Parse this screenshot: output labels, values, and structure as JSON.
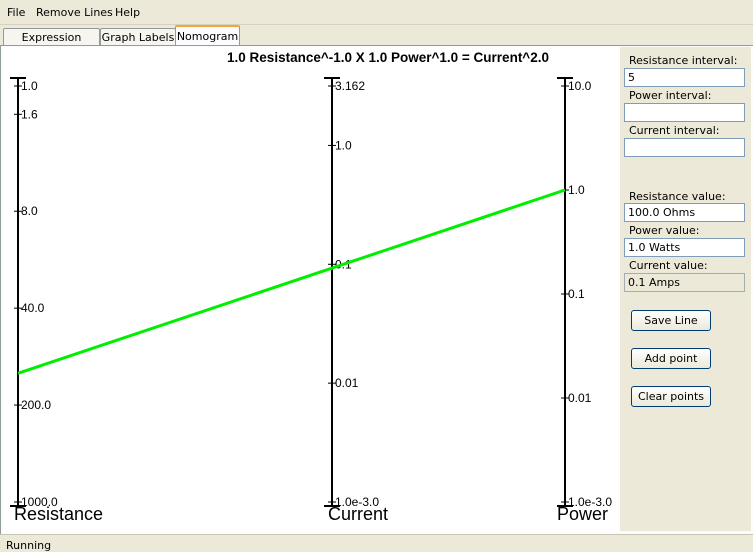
{
  "menu": [
    "File",
    "Remove Lines",
    "Help"
  ],
  "tabs": [
    {
      "label": "Expression Setup",
      "active": false
    },
    {
      "label": "Graph Labels",
      "active": false
    },
    {
      "label": "Nomogram",
      "active": true
    }
  ],
  "nomogram": {
    "title": "1.0 Resistance^-1.0 X 1.0 Power^1.0 = Current^2.0",
    "line_color": "#00ee00",
    "axes": [
      {
        "name": "Resistance",
        "ticks": [
          "1.0",
          "1.6",
          "8.0",
          "40.0",
          "200.0",
          "1000.0"
        ]
      },
      {
        "name": "Current",
        "ticks": [
          "3.162",
          "1.0",
          "0.1",
          "0.01",
          "1.0e-3.0"
        ]
      },
      {
        "name": "Power",
        "ticks": [
          "10.0",
          "1.0",
          "0.1",
          "0.01",
          "1.0e-3.0"
        ]
      }
    ],
    "isopleth": {
      "resistance": 100.0,
      "current": 0.1,
      "power": 1.0
    }
  },
  "side_panel": {
    "resistance_interval_label": "Resistance interval:",
    "resistance_interval_value": "5",
    "power_interval_label": "Power interval:",
    "power_interval_value": "",
    "current_interval_label": "Current interval:",
    "current_interval_value": "",
    "resistance_value_label": "Resistance value:",
    "resistance_value": "100.0 Ohms",
    "power_value_label": "Power value:",
    "power_value": "1.0 Watts",
    "current_value_label": "Current value:",
    "current_value": "0.1 Amps",
    "save_line": "Save Line",
    "add_point": "Add point",
    "clear_points": "Clear points"
  },
  "status": "Running"
}
